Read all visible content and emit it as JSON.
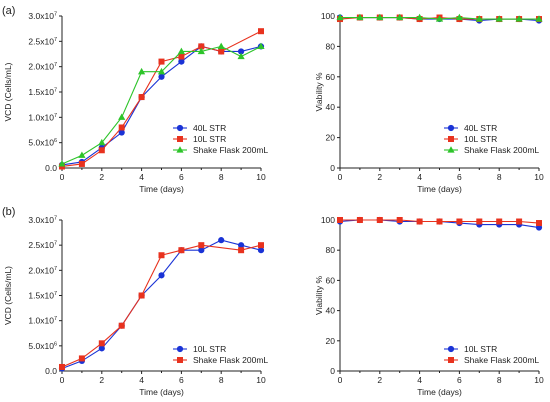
{
  "colors": {
    "40L STR": "#1a33d6",
    "10L STR": "#e8321e",
    "Shake Flask 200mL": "#2dc42a",
    "axis": "#222222"
  },
  "chart_data": [
    {
      "panel": "(a)",
      "type": "line",
      "xlabel": "Time (days)",
      "ylabel": "VCD (Cells/mL)",
      "xlim": [
        0,
        10
      ],
      "ylim": [
        0,
        30000000
      ],
      "xticks": [
        0,
        2,
        4,
        6,
        8,
        10
      ],
      "yticks": [
        {
          "value": 0,
          "label": "0.0"
        },
        {
          "value": 5000000,
          "label": "5.0x10",
          "exp": "6"
        },
        {
          "value": 10000000,
          "label": "1.0x10",
          "exp": "7"
        },
        {
          "value": 15000000,
          "label": "1.5x10",
          "exp": "7"
        },
        {
          "value": 20000000,
          "label": "2.0x10",
          "exp": "7"
        },
        {
          "value": 25000000,
          "label": "2.5x10",
          "exp": "7"
        },
        {
          "value": 30000000,
          "label": "3.0x10",
          "exp": "7"
        }
      ],
      "legend_position": "bottom-right",
      "series": [
        {
          "name": "40L STR",
          "marker": "circle",
          "x": [
            0,
            1,
            2,
            3,
            4,
            5,
            6,
            7,
            8,
            9,
            10
          ],
          "y": [
            600000,
            1200000,
            4000000,
            7000000,
            14000000,
            18000000,
            21000000,
            24000000,
            23000000,
            23000000,
            24000000
          ]
        },
        {
          "name": "10L STR",
          "marker": "square",
          "x": [
            0,
            1,
            2,
            3,
            4,
            5,
            6,
            7,
            8,
            10
          ],
          "y": [
            300000,
            800000,
            3500000,
            8000000,
            14000000,
            21000000,
            22000000,
            24000000,
            23000000,
            27000000
          ]
        },
        {
          "name": "Shake Flask 200mL",
          "marker": "triangle",
          "x": [
            0,
            1,
            2,
            3,
            4,
            5,
            6,
            7,
            8,
            9,
            10
          ],
          "y": [
            800000,
            2500000,
            5000000,
            10000000,
            19000000,
            19000000,
            23000000,
            23000000,
            24000000,
            22000000,
            24000000
          ]
        }
      ]
    },
    {
      "panel": "",
      "type": "line",
      "xlabel": "Time (days)",
      "ylabel": "Viability %",
      "xlim": [
        0,
        10
      ],
      "ylim": [
        0,
        100
      ],
      "xticks": [
        0,
        2,
        4,
        6,
        8,
        10
      ],
      "yticks": [
        {
          "value": 0,
          "label": "0"
        },
        {
          "value": 20,
          "label": "20"
        },
        {
          "value": 40,
          "label": "40"
        },
        {
          "value": 60,
          "label": "60"
        },
        {
          "value": 80,
          "label": "80"
        },
        {
          "value": 100,
          "label": "100"
        }
      ],
      "legend_position": "bottom-right",
      "series": [
        {
          "name": "40L STR",
          "marker": "circle",
          "x": [
            0,
            1,
            2,
            3,
            4,
            5,
            6,
            7,
            8,
            9,
            10
          ],
          "y": [
            99,
            99,
            99,
            99,
            98,
            98,
            98,
            97,
            98,
            98,
            97
          ]
        },
        {
          "name": "10L STR",
          "marker": "square",
          "x": [
            0,
            1,
            2,
            3,
            4,
            5,
            6,
            7,
            8,
            9,
            10
          ],
          "y": [
            98,
            99,
            99,
            99,
            98,
            99,
            98,
            98,
            98,
            98,
            98
          ]
        },
        {
          "name": "Shake Flask 200mL",
          "marker": "triangle",
          "x": [
            0,
            1,
            2,
            3,
            4,
            5,
            6,
            7,
            8,
            9,
            10
          ],
          "y": [
            99,
            99,
            99,
            99,
            99,
            98,
            99,
            98,
            98,
            98,
            98
          ]
        }
      ]
    },
    {
      "panel": "(b)",
      "type": "line",
      "xlabel": "Time (days)",
      "ylabel": "VCD (Cells/mL)",
      "xlim": [
        0,
        10
      ],
      "ylim": [
        0,
        30000000
      ],
      "xticks": [
        0,
        2,
        4,
        6,
        8,
        10
      ],
      "yticks": [
        {
          "value": 0,
          "label": "0.0"
        },
        {
          "value": 5000000,
          "label": "5.0x10",
          "exp": "6"
        },
        {
          "value": 10000000,
          "label": "1.0x10",
          "exp": "7"
        },
        {
          "value": 15000000,
          "label": "1.5x10",
          "exp": "7"
        },
        {
          "value": 20000000,
          "label": "2.0x10",
          "exp": "7"
        },
        {
          "value": 25000000,
          "label": "2.5x10",
          "exp": "7"
        },
        {
          "value": 30000000,
          "label": "3.0x10",
          "exp": "7"
        }
      ],
      "legend_position": "bottom-right",
      "series": [
        {
          "name": "10L STR",
          "marker": "circle",
          "color_key": "40L STR",
          "x": [
            0,
            1,
            2,
            3,
            4,
            5,
            6,
            7,
            8,
            9,
            10
          ],
          "y": [
            500000,
            2000000,
            4500000,
            9000000,
            15000000,
            19000000,
            24000000,
            24000000,
            26000000,
            25000000,
            24000000
          ]
        },
        {
          "name": "Shake Flask 200mL",
          "marker": "square",
          "color_key": "10L STR",
          "x": [
            0,
            1,
            2,
            3,
            4,
            5,
            6,
            7,
            9,
            10
          ],
          "y": [
            800000,
            2500000,
            5500000,
            9000000,
            15000000,
            23000000,
            24000000,
            25000000,
            24000000,
            25000000
          ]
        }
      ]
    },
    {
      "panel": "",
      "type": "line",
      "xlabel": "Time (days)",
      "ylabel": "Viability %",
      "xlim": [
        0,
        10
      ],
      "ylim": [
        0,
        100
      ],
      "xticks": [
        0,
        2,
        4,
        6,
        8,
        10
      ],
      "yticks": [
        {
          "value": 0,
          "label": "0"
        },
        {
          "value": 20,
          "label": "20"
        },
        {
          "value": 40,
          "label": "40"
        },
        {
          "value": 60,
          "label": "60"
        },
        {
          "value": 80,
          "label": "80"
        },
        {
          "value": 100,
          "label": "100"
        }
      ],
      "legend_position": "bottom-right",
      "series": [
        {
          "name": "10L STR",
          "marker": "circle",
          "color_key": "40L STR",
          "x": [
            0,
            1,
            2,
            3,
            4,
            5,
            6,
            7,
            8,
            9,
            10
          ],
          "y": [
            99,
            100,
            100,
            99,
            99,
            99,
            98,
            97,
            97,
            97,
            95
          ]
        },
        {
          "name": "Shake Flask 200mL",
          "marker": "square",
          "color_key": "10L STR",
          "x": [
            0,
            1,
            2,
            3,
            4,
            5,
            6,
            7,
            8,
            9,
            10
          ],
          "y": [
            100,
            100,
            100,
            100,
            99,
            99,
            99,
            99,
            99,
            99,
            98
          ]
        }
      ]
    }
  ]
}
